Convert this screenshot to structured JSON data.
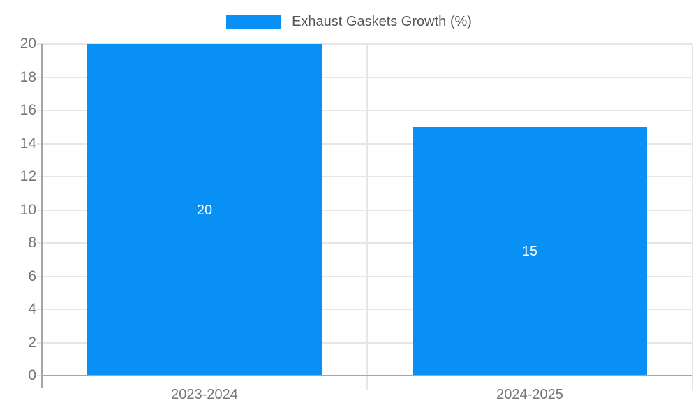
{
  "chart_data": {
    "type": "bar",
    "title": "",
    "categories": [
      "2023-2024",
      "2024-2025"
    ],
    "series": [
      {
        "name": "Exhaust Gaskets Growth (%)",
        "values": [
          20,
          15
        ]
      }
    ],
    "value_labels": [
      "20",
      "15"
    ],
    "xlabel": "",
    "ylabel": "",
    "ylim": [
      0,
      20
    ],
    "ytick_step": 2,
    "yticks": [
      0,
      2,
      4,
      6,
      8,
      10,
      12,
      14,
      16,
      18,
      20
    ],
    "grid": true,
    "legend_position": "top-center",
    "colors": {
      "bar": "#0890f5",
      "value_label": "#ffffff",
      "grid_line": "#e6e6e6",
      "axis_line": "#a6a6a6",
      "tick_label": "#757575",
      "legend_text": "#555555",
      "background": "#ffffff"
    }
  }
}
